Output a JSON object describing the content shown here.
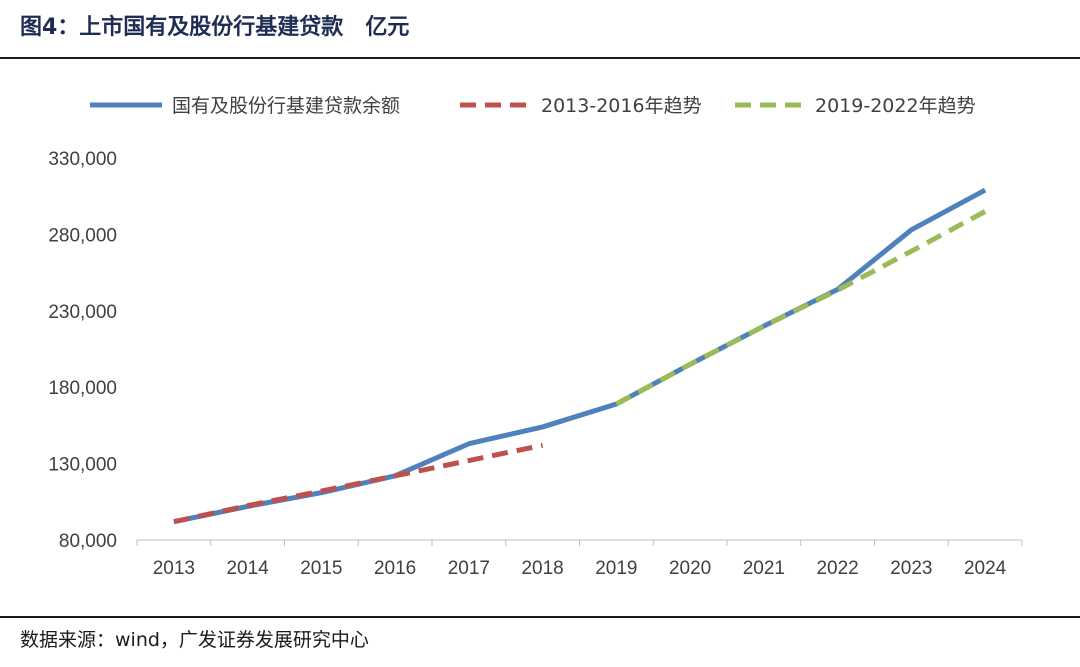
{
  "header": {
    "title": "图4：上市国有及股份行基建贷款",
    "unit": "亿元"
  },
  "source": "数据来源：wind，广发证券发展研究中心",
  "chart_data": {
    "type": "line",
    "categories": [
      "2013",
      "2014",
      "2015",
      "2016",
      "2017",
      "2018",
      "2019",
      "2020",
      "2021",
      "2022",
      "2023",
      "2024"
    ],
    "ylim": [
      80000,
      330000
    ],
    "yticks": [
      80000,
      130000,
      180000,
      230000,
      280000,
      330000
    ],
    "ytick_labels": [
      "80,000",
      "130,000",
      "180,000",
      "230,000",
      "280,000",
      "330,000"
    ],
    "grid": false,
    "legend_position": "top",
    "series": [
      {
        "name": "国有及股份行基建贷款余额",
        "color": "#4f81bd",
        "style": "solid",
        "values": [
          92000,
          102000,
          111000,
          122000,
          143000,
          154000,
          169000,
          195000,
          220000,
          244000,
          283000,
          309000
        ]
      },
      {
        "name": "2013-2016年趋势",
        "color": "#c0504d",
        "style": "dashed",
        "values": [
          92000,
          102500,
          112000,
          122000,
          132000,
          142000,
          null,
          null,
          null,
          null,
          null,
          null
        ]
      },
      {
        "name": "2019-2022年趋势",
        "color": "#9bbb59",
        "style": "dashed",
        "values": [
          null,
          null,
          null,
          null,
          null,
          null,
          169000,
          195000,
          220000,
          243500,
          269000,
          295000
        ]
      }
    ]
  }
}
